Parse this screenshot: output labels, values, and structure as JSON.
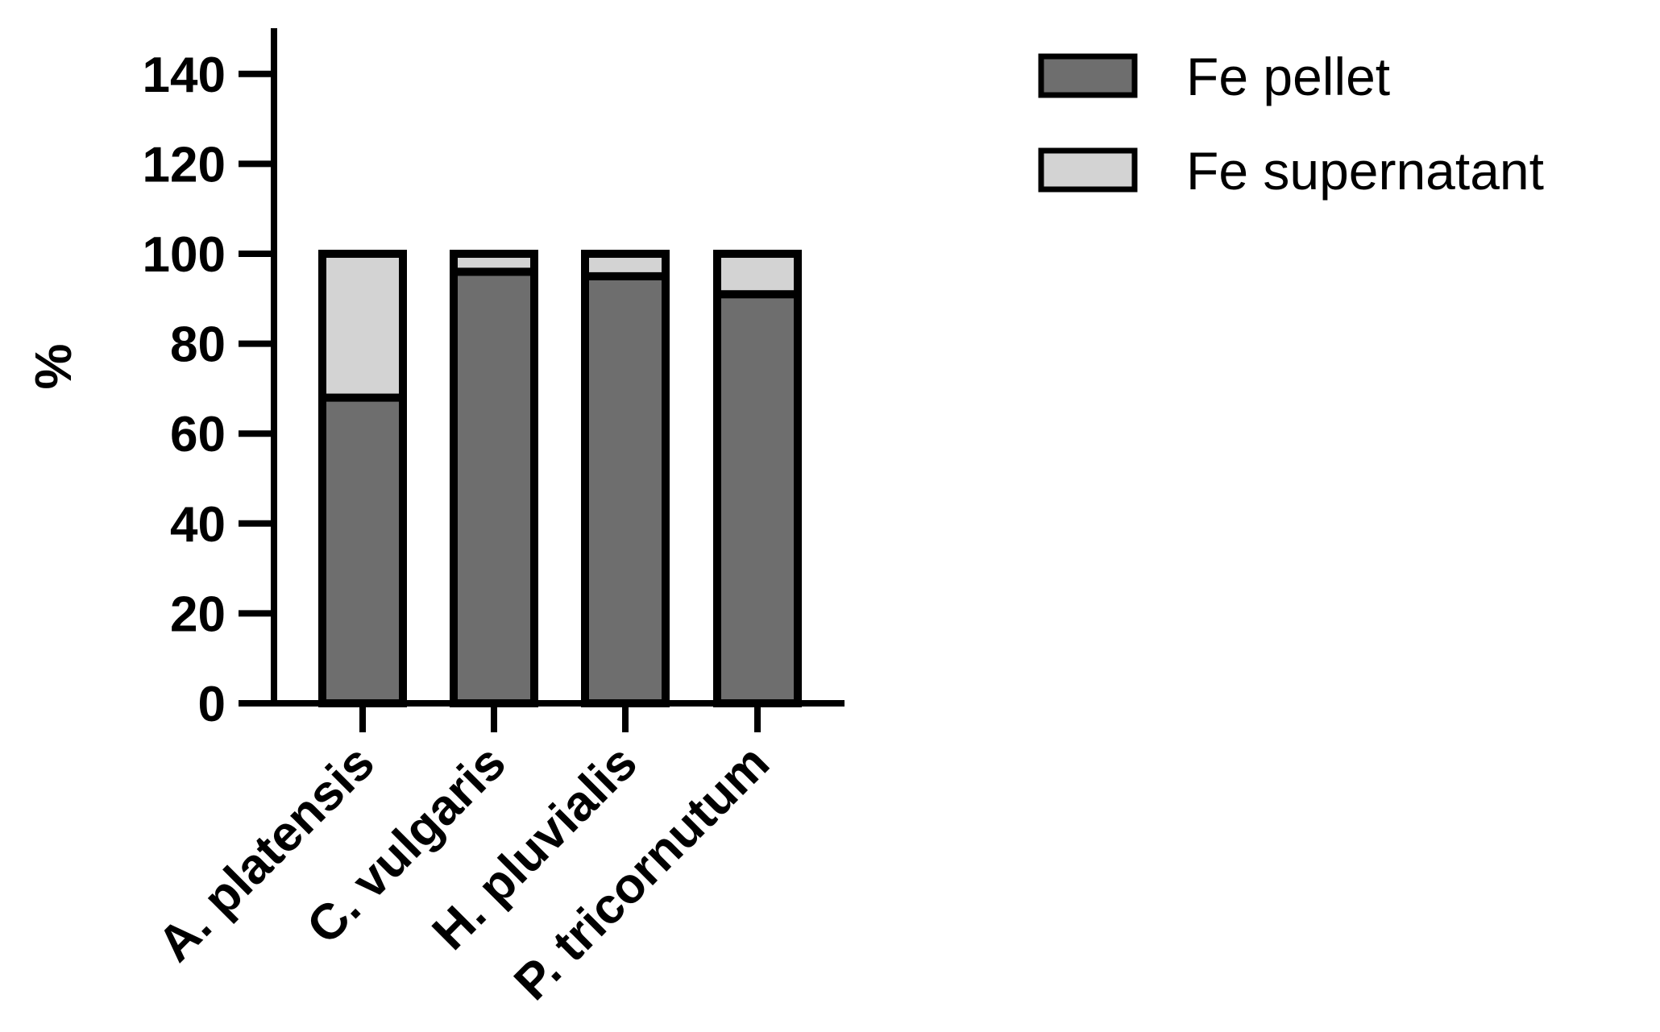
{
  "chart_data": {
    "type": "bar",
    "stacked": true,
    "categories": [
      "A. platensis",
      "C. vulgaris",
      "H. pluvialis",
      "P. tricornutum"
    ],
    "series": [
      {
        "name": "Fe pellet",
        "values": [
          68,
          96,
          95,
          91
        ],
        "color": "#6e6e6e"
      },
      {
        "name": "Fe supernatant",
        "values": [
          32,
          4,
          5,
          9
        ],
        "color": "#d3d3d3"
      }
    ],
    "yticks": [
      "0",
      "20",
      "40",
      "60",
      "80",
      "100",
      "120",
      "140"
    ],
    "ylabel": "%",
    "ylim": [
      0,
      150
    ],
    "legend": "top-right",
    "grid": false
  }
}
